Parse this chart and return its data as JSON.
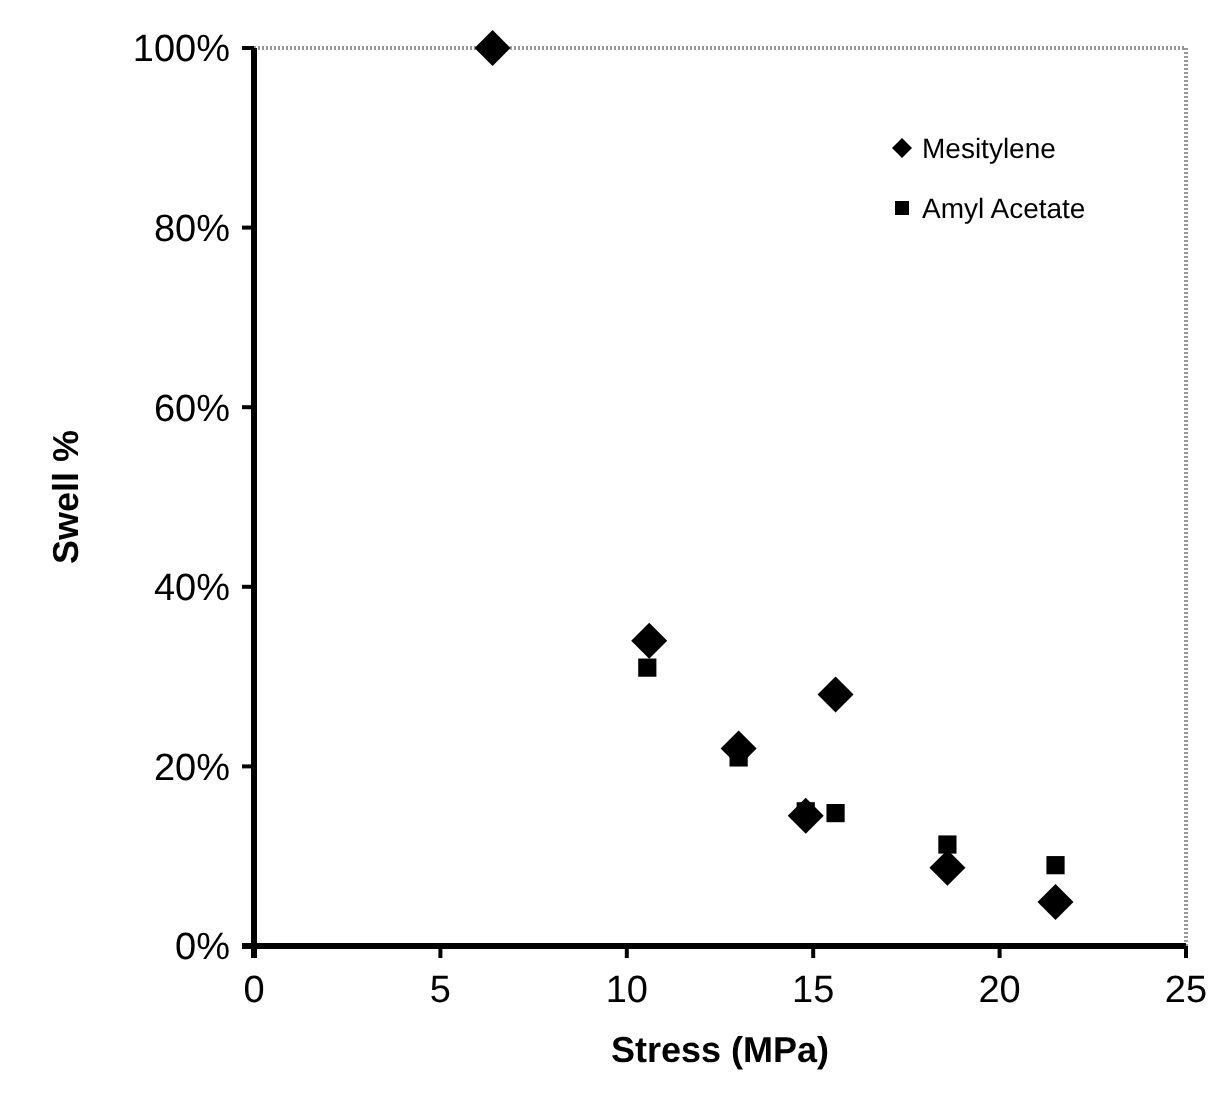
{
  "chart_data": {
    "type": "scatter",
    "xlabel": "Stress (MPa)",
    "ylabel": "Swell %",
    "xlim": [
      0,
      25
    ],
    "xticks": [
      0,
      5,
      10,
      15,
      20,
      25
    ],
    "ylim": [
      0,
      100
    ],
    "yticks": [
      {
        "value": 0,
        "label": "0%"
      },
      {
        "value": 20,
        "label": "20%"
      },
      {
        "value": 40,
        "label": "40%"
      },
      {
        "value": 60,
        "label": "60%"
      },
      {
        "value": 80,
        "label": "80%"
      },
      {
        "value": 100,
        "label": "100%"
      }
    ],
    "grid": false,
    "legend": "top right",
    "series": [
      {
        "name": "Mesitylene",
        "color": "#000000",
        "marker": "diamond",
        "x": [
          6.4,
          10.6,
          13.0,
          14.8,
          15.6,
          18.6,
          21.5
        ],
        "values": [
          100,
          34,
          22,
          14.5,
          28,
          8.7,
          4.9
        ]
      },
      {
        "name": "Amyl Acetate",
        "color": "#000000",
        "marker": "square",
        "x": [
          10.55,
          13.0,
          14.8,
          15.6,
          18.6,
          21.5
        ],
        "values": [
          31,
          21,
          15,
          14.8,
          11.3,
          9
        ]
      }
    ]
  }
}
